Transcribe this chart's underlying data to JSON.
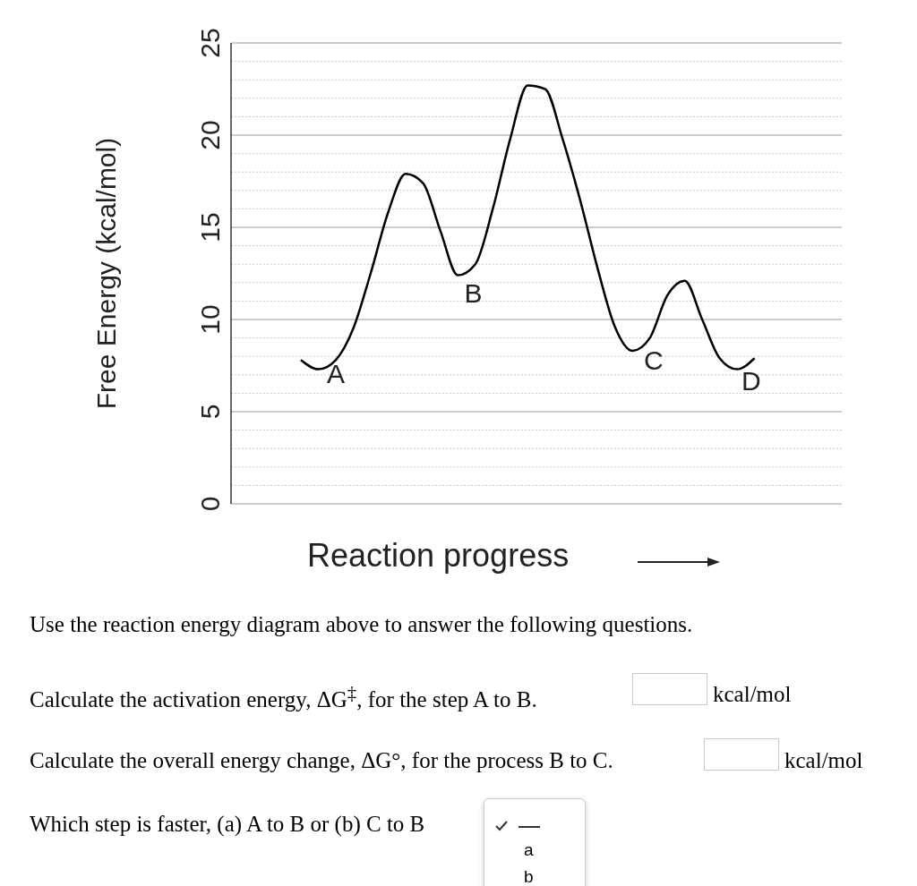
{
  "chart_data": {
    "type": "line",
    "ylabel": "Free Energy (kcal/mol)",
    "xlabel": "Reaction progress",
    "categories": [
      null,
      null,
      null,
      null,
      null,
      null,
      null,
      null,
      null,
      null,
      null,
      null,
      null,
      null,
      null,
      null,
      null,
      null,
      null,
      null,
      null,
      null,
      null,
      null,
      null,
      null,
      null,
      null,
      null,
      null,
      null,
      null,
      null,
      null,
      null,
      null
    ],
    "series": [
      {
        "color": "#000000",
        "values": [
          null,
          null,
          null,
          null,
          7.8,
          7.3,
          7.8,
          9.5,
          12.5,
          15.8,
          17.9,
          17.4,
          14.8,
          12.4,
          13.0,
          16.0,
          19.8,
          22.7,
          22.5,
          19.8,
          16.5,
          12.8,
          9.6,
          8.3,
          9.0,
          11.3,
          12.1,
          10.0,
          7.9,
          7.3,
          7.9,
          null,
          null,
          null,
          null,
          null
        ]
      }
    ],
    "ylim": [
      0,
      25
    ],
    "yticks": [
      0,
      {
        "value": 1,
        "label": null
      },
      {
        "value": 2,
        "label": null
      },
      {
        "value": 3,
        "label": null
      },
      {
        "value": 4,
        "label": null
      },
      5,
      {
        "value": 6,
        "label": null
      },
      {
        "value": 7,
        "label": null
      },
      {
        "value": 8,
        "label": null
      },
      {
        "value": 9,
        "label": null
      },
      10,
      {
        "value": 11,
        "label": null
      },
      {
        "value": 12,
        "label": null
      },
      {
        "value": 13,
        "label": null
      },
      {
        "value": 14,
        "label": null
      },
      15,
      {
        "value": 16,
        "label": null
      },
      {
        "value": 17,
        "label": null
      },
      {
        "value": 18,
        "label": null
      },
      {
        "value": 19,
        "label": null
      },
      20,
      {
        "value": 21,
        "label": null
      },
      {
        "value": 22,
        "label": null
      },
      {
        "value": 23,
        "label": null
      },
      {
        "value": 24,
        "label": null
      },
      25
    ],
    "grid": "y",
    "marker": "none",
    "line_style": "solid",
    "annotations": [
      "A",
      "B",
      "C",
      "D",
      "Use the reaction energy diagram above to answer the following questions.",
      "Calculate the activation energy, ΔG$^{‡}$, for the step A to B.",
      "kcal/mol",
      "Calculate the overall energy change, ΔG°, for the process B to C.",
      "kcal/mol",
      "Which step is faster, (a) A to B or (b) C to B",
      "a",
      "b"
    ]
  }
}
